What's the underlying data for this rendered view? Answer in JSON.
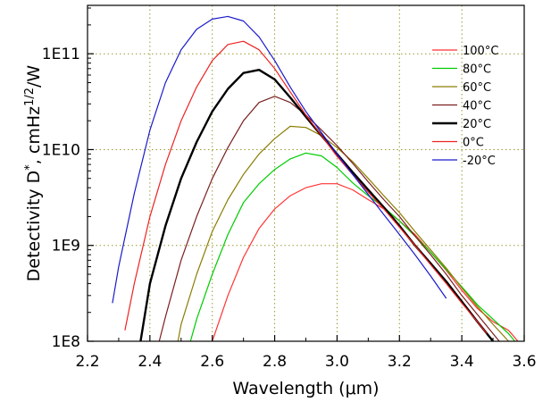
{
  "chart_data": {
    "type": "line",
    "xlabel": "Wavelength (μm)",
    "ylabel": "Detectivity D*, cmHz1/2/W",
    "xlim": [
      2.2,
      3.6
    ],
    "ylim": [
      100000000.0,
      320000000000.0
    ],
    "yscale": "log",
    "x_ticks": [
      "2.2",
      "2.4",
      "2.6",
      "2.8",
      "3.0",
      "3.2",
      "3.4",
      "3.6"
    ],
    "y_ticks": [
      "1E8",
      "1E9",
      "1E10",
      "1E11"
    ],
    "grid": "dotted, olive, at major ticks",
    "legend_position": "right",
    "series": [
      {
        "name": "100°C",
        "color": "#ff3333",
        "points": [
          [
            2.6,
            100000000.0
          ],
          [
            2.65,
            300000000.0
          ],
          [
            2.7,
            750000000.0
          ],
          [
            2.75,
            1500000000.0
          ],
          [
            2.8,
            2400000000.0
          ],
          [
            2.85,
            3300000000.0
          ],
          [
            2.9,
            4000000000.0
          ],
          [
            2.95,
            4400000000.0
          ],
          [
            3.0,
            4400000000.0
          ],
          [
            3.05,
            3800000000.0
          ],
          [
            3.1,
            3000000000.0
          ],
          [
            3.15,
            2400000000.0
          ],
          [
            3.2,
            1800000000.0
          ],
          [
            3.25,
            1300000000.0
          ],
          [
            3.3,
            850000000.0
          ],
          [
            3.35,
            550000000.0
          ],
          [
            3.4,
            340000000.0
          ],
          [
            3.45,
            220000000.0
          ],
          [
            3.5,
            160000000.0
          ],
          [
            3.55,
            130000000.0
          ],
          [
            3.58,
            100000000.0
          ]
        ]
      },
      {
        "name": "80°C",
        "color": "#00cc00",
        "points": [
          [
            2.53,
            100000000.0
          ],
          [
            2.55,
            170000000.0
          ],
          [
            2.6,
            500000000.0
          ],
          [
            2.65,
            1300000000.0
          ],
          [
            2.7,
            2800000000.0
          ],
          [
            2.75,
            4400000000.0
          ],
          [
            2.8,
            6200000000.0
          ],
          [
            2.85,
            8000000000.0
          ],
          [
            2.9,
            9200000000.0
          ],
          [
            2.95,
            8600000000.0
          ],
          [
            3.0,
            6500000000.0
          ],
          [
            3.05,
            4500000000.0
          ],
          [
            3.1,
            3300000000.0
          ],
          [
            3.15,
            2500000000.0
          ],
          [
            3.2,
            1800000000.0
          ],
          [
            3.25,
            1250000000.0
          ],
          [
            3.3,
            850000000.0
          ],
          [
            3.35,
            560000000.0
          ],
          [
            3.4,
            370000000.0
          ],
          [
            3.45,
            240000000.0
          ],
          [
            3.5,
            170000000.0
          ],
          [
            3.55,
            120000000.0
          ],
          [
            3.57,
            100000000.0
          ]
        ]
      },
      {
        "name": "60°C",
        "color": "#8b7d00",
        "points": [
          [
            2.49,
            100000000.0
          ],
          [
            2.5,
            150000000.0
          ],
          [
            2.55,
            500000000.0
          ],
          [
            2.6,
            1400000000.0
          ],
          [
            2.65,
            3000000000.0
          ],
          [
            2.7,
            5500000000.0
          ],
          [
            2.75,
            9000000000.0
          ],
          [
            2.8,
            13000000000.0
          ],
          [
            2.85,
            17500000000.0
          ],
          [
            2.9,
            17000000000.0
          ],
          [
            2.95,
            14000000000.0
          ],
          [
            3.0,
            10500000000.0
          ],
          [
            3.05,
            7500000000.0
          ],
          [
            3.1,
            5000000000.0
          ],
          [
            3.15,
            3300000000.0
          ],
          [
            3.2,
            2200000000.0
          ],
          [
            3.25,
            1400000000.0
          ],
          [
            3.3,
            900000000.0
          ],
          [
            3.35,
            580000000.0
          ],
          [
            3.4,
            360000000.0
          ],
          [
            3.45,
            230000000.0
          ],
          [
            3.5,
            150000000.0
          ],
          [
            3.55,
            100000000.0
          ]
        ]
      },
      {
        "name": "40°C",
        "color": "#7a1f1f",
        "points": [
          [
            2.43,
            100000000.0
          ],
          [
            2.45,
            180000000.0
          ],
          [
            2.5,
            700000000.0
          ],
          [
            2.55,
            2000000000.0
          ],
          [
            2.6,
            5000000000.0
          ],
          [
            2.65,
            10500000000.0
          ],
          [
            2.7,
            20000000000.0
          ],
          [
            2.75,
            31000000000.0
          ],
          [
            2.8,
            36000000000.0
          ],
          [
            2.85,
            31000000000.0
          ],
          [
            2.9,
            23000000000.0
          ],
          [
            2.95,
            16000000000.0
          ],
          [
            3.0,
            11000000000.0
          ],
          [
            3.05,
            7200000000.0
          ],
          [
            3.1,
            4600000000.0
          ],
          [
            3.15,
            3000000000.0
          ],
          [
            3.2,
            2000000000.0
          ],
          [
            3.25,
            1250000000.0
          ],
          [
            3.3,
            800000000.0
          ],
          [
            3.35,
            500000000.0
          ],
          [
            3.4,
            300000000.0
          ],
          [
            3.45,
            190000000.0
          ],
          [
            3.5,
            120000000.0
          ],
          [
            3.52,
            100000000.0
          ]
        ]
      },
      {
        "name": "20°C",
        "color": "#000000",
        "width": 2.4,
        "points": [
          [
            2.37,
            100000000.0
          ],
          [
            2.4,
            400000000.0
          ],
          [
            2.45,
            1600000000.0
          ],
          [
            2.5,
            5000000000.0
          ],
          [
            2.55,
            12000000000.0
          ],
          [
            2.6,
            25000000000.0
          ],
          [
            2.65,
            43000000000.0
          ],
          [
            2.7,
            63000000000.0
          ],
          [
            2.75,
            68000000000.0
          ],
          [
            2.8,
            54000000000.0
          ],
          [
            2.85,
            35000000000.0
          ],
          [
            2.9,
            22000000000.0
          ],
          [
            2.95,
            14000000000.0
          ],
          [
            3.0,
            9000000000.0
          ],
          [
            3.05,
            5800000000.0
          ],
          [
            3.1,
            3800000000.0
          ],
          [
            3.15,
            2500000000.0
          ],
          [
            3.2,
            1600000000.0
          ],
          [
            3.25,
            1000000000.0
          ],
          [
            3.3,
            650000000.0
          ],
          [
            3.35,
            420000000.0
          ],
          [
            3.4,
            260000000.0
          ],
          [
            3.45,
            160000000.0
          ],
          [
            3.5,
            100000000.0
          ]
        ]
      },
      {
        "name": "0°C",
        "color": "#ee2222",
        "points": [
          [
            2.32,
            130000000.0
          ],
          [
            2.35,
            400000000.0
          ],
          [
            2.4,
            2000000000.0
          ],
          [
            2.45,
            7000000000.0
          ],
          [
            2.5,
            20000000000.0
          ],
          [
            2.55,
            45000000000.0
          ],
          [
            2.6,
            85000000000.0
          ],
          [
            2.65,
            125000000000.0
          ],
          [
            2.7,
            135000000000.0
          ],
          [
            2.75,
            110000000000.0
          ],
          [
            2.8,
            70000000000.0
          ],
          [
            2.85,
            40000000000.0
          ],
          [
            2.9,
            23000000000.0
          ],
          [
            2.95,
            14000000000.0
          ],
          [
            3.0,
            8500000000.0
          ],
          [
            3.05,
            5500000000.0
          ],
          [
            3.1,
            3600000000.0
          ],
          [
            3.15,
            2400000000.0
          ],
          [
            3.2,
            1550000000.0
          ],
          [
            3.25,
            1000000000.0
          ],
          [
            3.3,
            630000000.0
          ],
          [
            3.35,
            400000000.0
          ],
          [
            3.4,
            250000000.0
          ],
          [
            3.45,
            160000000.0
          ],
          [
            3.48,
            120000000.0
          ]
        ]
      },
      {
        "name": "-20°C",
        "color": "#1a1acc",
        "points": [
          [
            2.28,
            250000000.0
          ],
          [
            2.3,
            600000000.0
          ],
          [
            2.35,
            3500000000.0
          ],
          [
            2.4,
            16000000000.0
          ],
          [
            2.45,
            50000000000.0
          ],
          [
            2.5,
            110000000000.0
          ],
          [
            2.55,
            180000000000.0
          ],
          [
            2.6,
            230000000000.0
          ],
          [
            2.65,
            245000000000.0
          ],
          [
            2.7,
            220000000000.0
          ],
          [
            2.75,
            150000000000.0
          ],
          [
            2.8,
            85000000000.0
          ],
          [
            2.85,
            45000000000.0
          ],
          [
            2.9,
            25000000000.0
          ],
          [
            2.95,
            15000000000.0
          ],
          [
            3.0,
            9000000000.0
          ],
          [
            3.05,
            5500000000.0
          ],
          [
            3.1,
            3400000000.0
          ],
          [
            3.15,
            2100000000.0
          ],
          [
            3.2,
            1300000000.0
          ],
          [
            3.25,
            800000000.0
          ],
          [
            3.3,
            480000000.0
          ],
          [
            3.35,
            280000000.0
          ]
        ]
      }
    ]
  }
}
